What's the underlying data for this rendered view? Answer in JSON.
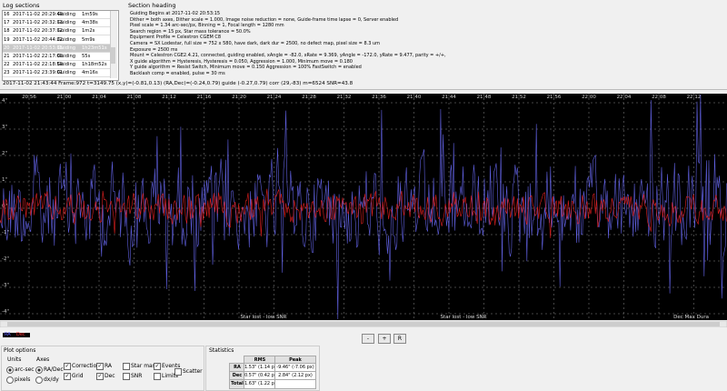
{
  "log_sections": {
    "title": "Log sections",
    "rows": [
      [
        "16",
        "2017-11-02 20:29:49",
        "Guiding",
        "1m59s"
      ],
      [
        "17",
        "2017-11-02 20:32:13",
        "Guiding",
        "4m38s"
      ],
      [
        "18",
        "2017-11-02 20:37:12",
        "Guiding",
        "1m2s"
      ],
      [
        "19",
        "2017-11-02 20:44:22",
        "Guiding",
        "5m9s"
      ],
      [
        "20",
        "2017-11-02 20:53:15",
        "Guiding",
        "1h23m51s"
      ],
      [
        "21",
        "2017-11-02 22:17:00",
        "Guiding",
        "55s"
      ],
      [
        "22",
        "2017-11-02 22:18:59",
        "Guiding",
        "1h18m52s"
      ],
      [
        "23",
        "2017-11-02 23:39:01",
        "Guiding",
        "4m16s"
      ]
    ],
    "selected": 4
  },
  "section_heading": {
    "title": "Section heading",
    "lines": [
      "Guiding Begins at 2017-11-02 20:53:15",
      "Dither = both axes, Dither scale = 1.000, Image noise reduction = none, Guide-frame time lapse = 0, Server enabled",
      "Pixel scale = 1.34 arc-sec/px, Binning = 1, Focal length = 1280 mm",
      "Search region = 15 px, Star mass tolerance = 50.0%",
      "Equipment Profile = Celestron CGEM C8",
      "Camera = SX Lodestar, full size = 752 x 580, have dark, dark dur = 2500, no defect map, pixel size = 8.3 um",
      "Exposure = 2500 ms",
      "Mount = Celestron CGE2.4.21, connected, guiding enabled, xAngle = -82.0, xRate = 9.369, yAngle = -172.0, yRate = 9.477, parity = +/+,",
      "X guide algorithm = Hysteresis, Hysteresis = 0.050, Aggression = 1.000, Minimum move = 0.180",
      "Y guide algorithm = Resist Switch, Minimum move = 0.150 Aggression = 100% FastSwitch = enabled",
      "Backlash comp = enabled, pulse = 30 ms"
    ]
  },
  "status_line": "2017-11-02 21:43:44 Frame:972 t=3149.75 (x,y)=(-0.81,0.13) (RA,Dec)=(-0.24,0.79) guide (-0.27,0.79) corr (29,-83) m=6524 SNR=43.8",
  "plot": {
    "time_labels": [
      "20:56",
      "21:00",
      "21:04",
      "21:08",
      "21:12",
      "21:16",
      "21:20",
      "21:24",
      "21:28",
      "21:32",
      "21:36",
      "21:40",
      "21:44",
      "21:48",
      "21:52",
      "21:56",
      "22:00",
      "22:04",
      "22:08",
      "22:12"
    ],
    "y_labels": [
      "4\"",
      "3\"",
      "2\"",
      "1\"",
      "0\"",
      "-1\"",
      "-2\"",
      "-3\"",
      "-4\""
    ],
    "events": [
      "Star lost - low SNR",
      "Star lost - low SNR",
      "Dec Max Dura"
    ],
    "legend": [
      "RA",
      "Dec"
    ]
  },
  "zoom_buttons": [
    "-",
    "+",
    "R"
  ],
  "plot_options": {
    "title": "Plot options",
    "units_label": "Units",
    "units": [
      "arc-sec",
      "pixels"
    ],
    "axes_label": "Axes",
    "axes": [
      "RA/Dec",
      "dx/dy"
    ],
    "checkboxes": [
      {
        "label": "Corrections",
        "checked": true
      },
      {
        "label": "Grid",
        "checked": true
      },
      {
        "label": "RA",
        "checked": true
      },
      {
        "label": "Dec",
        "checked": true
      },
      {
        "label": "Star mass",
        "checked": false
      },
      {
        "label": "SNR",
        "checked": false
      },
      {
        "label": "Events",
        "checked": true
      },
      {
        "label": "Limits",
        "checked": false
      },
      {
        "label": "Scatter",
        "checked": false
      }
    ]
  },
  "statistics": {
    "title": "Statistics",
    "header": [
      "RMS",
      "Peak"
    ],
    "rows": [
      [
        "RA",
        "1.53\" (1.14 px)",
        "-9.46\" (-7.06 px)"
      ],
      [
        "Dec",
        "0.57\" (0.42 px)",
        "2.84\" (2.12 px)"
      ],
      [
        "Total",
        "1.63\" (1.22 px)",
        ""
      ]
    ]
  }
}
